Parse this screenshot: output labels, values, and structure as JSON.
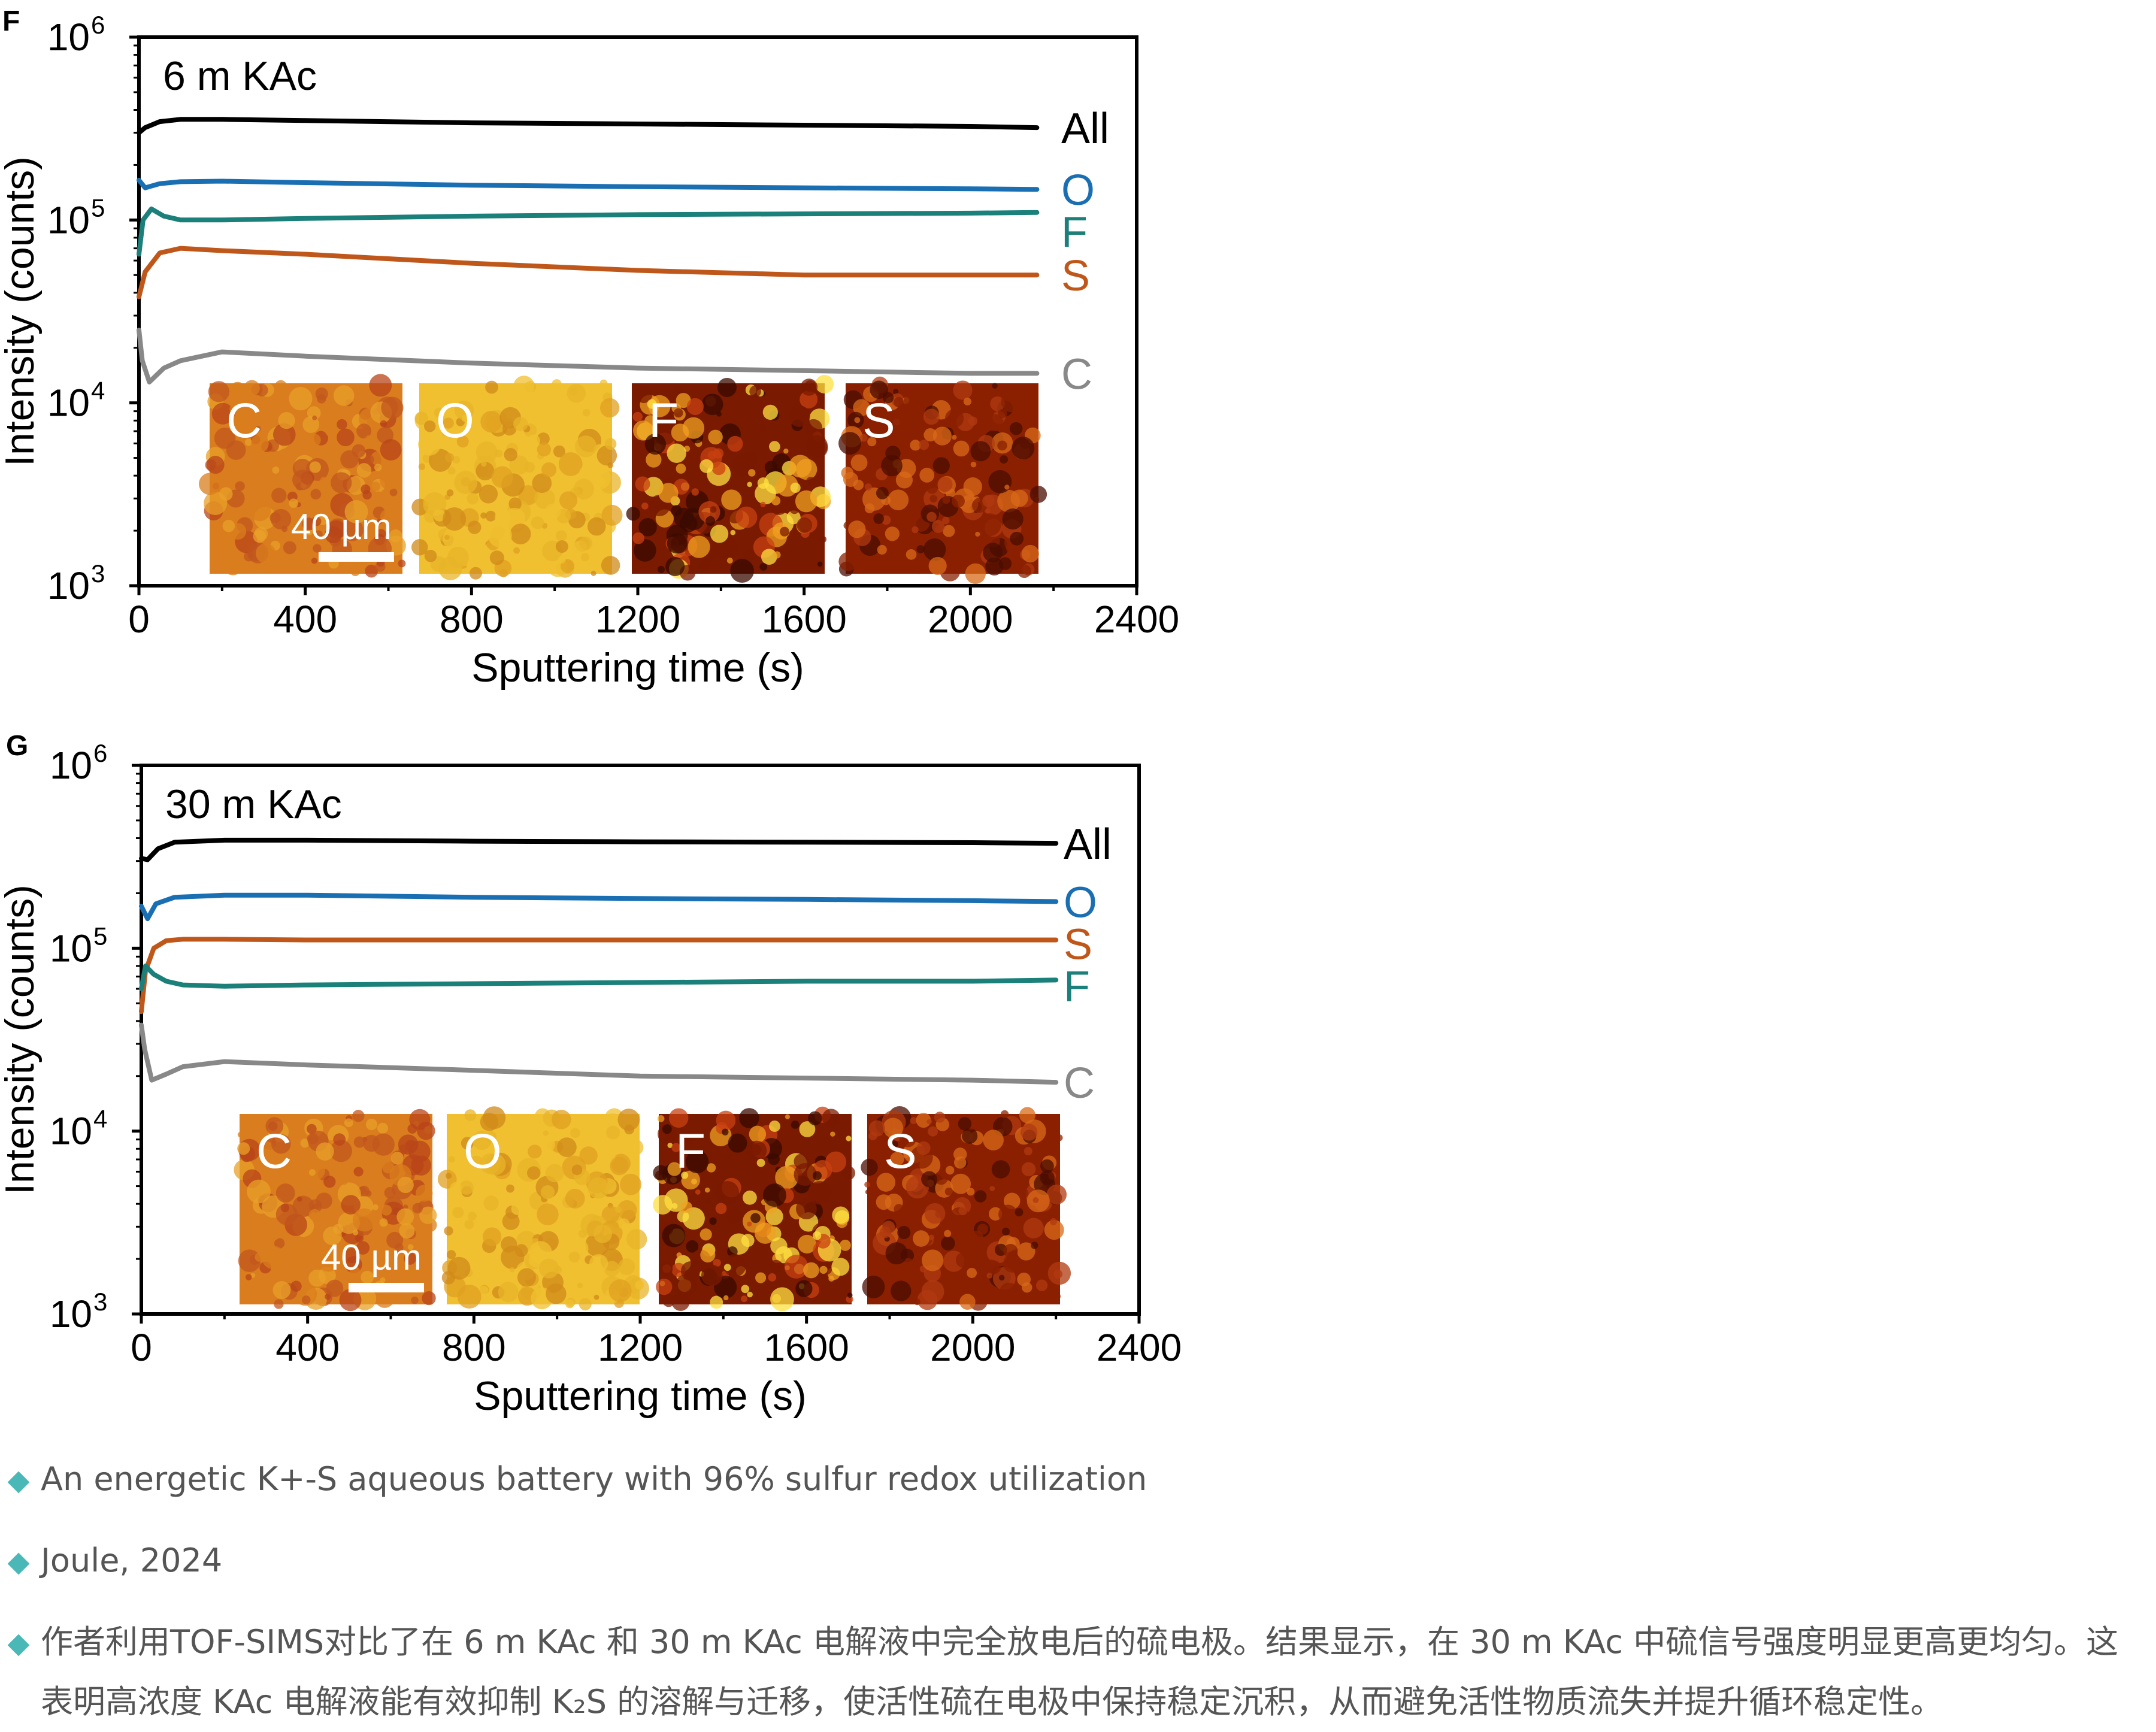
{
  "panels": [
    {
      "letter": "F",
      "title": "6 m KAc",
      "ylabel": "Intensity (counts)",
      "xlabel": "Sputtering time (s)",
      "scalebar_label": "40 µm",
      "inset_labels": [
        "C",
        "O",
        "F",
        "S"
      ]
    },
    {
      "letter": "G",
      "title": "30 m KAc",
      "ylabel": "Intensity (counts)",
      "xlabel": "Sputtering time (s)",
      "scalebar_label": "40 µm",
      "inset_labels": [
        "C",
        "O",
        "F",
        "S"
      ]
    }
  ],
  "chart_data": [
    {
      "type": "line",
      "title": "6 m KAc",
      "xlabel": "Sputtering time (s)",
      "ylabel": "Intensity (counts)",
      "yscale": "log",
      "xlim": [
        0,
        2400
      ],
      "ylim": [
        1000,
        1000000
      ],
      "xticks": [
        "0",
        "400",
        "800",
        "1200",
        "1600",
        "2000",
        "2400"
      ],
      "yticks": [
        "10^3",
        "10^4",
        "10^5",
        "10^6"
      ],
      "series": [
        {
          "name": "All",
          "color": "#000000",
          "x": [
            0,
            15,
            50,
            100,
            200,
            400,
            800,
            1200,
            1600,
            2000,
            2160
          ],
          "y": [
            300000,
            320000,
            345000,
            355000,
            355000,
            350000,
            340000,
            335000,
            330000,
            325000,
            320000
          ]
        },
        {
          "name": "O",
          "color": "#1a6fb3",
          "x": [
            0,
            15,
            50,
            100,
            200,
            400,
            800,
            1200,
            1600,
            2000,
            2160
          ],
          "y": [
            165000,
            150000,
            158000,
            162000,
            163000,
            160000,
            155000,
            152000,
            150000,
            148000,
            147000
          ]
        },
        {
          "name": "F",
          "color": "#1b7f7a",
          "x": [
            0,
            10,
            30,
            60,
            100,
            200,
            400,
            800,
            1200,
            1600,
            2000,
            2160
          ],
          "y": [
            65000,
            100000,
            115000,
            105000,
            100000,
            100000,
            102000,
            105000,
            107000,
            108000,
            109000,
            110000
          ]
        },
        {
          "name": "S",
          "color": "#c0571a",
          "x": [
            0,
            15,
            50,
            100,
            200,
            400,
            800,
            1200,
            1600,
            2000,
            2160
          ],
          "y": [
            38000,
            52000,
            66000,
            70000,
            68000,
            65000,
            58000,
            53000,
            50000,
            50000,
            50000
          ]
        },
        {
          "name": "C",
          "color": "#888888",
          "x": [
            0,
            8,
            25,
            60,
            100,
            200,
            400,
            800,
            1200,
            1600,
            2000,
            2160
          ],
          "y": [
            25000,
            17000,
            13000,
            15500,
            17000,
            19000,
            18000,
            16500,
            15500,
            15000,
            14500,
            14500
          ]
        }
      ]
    },
    {
      "type": "line",
      "title": "30 m KAc",
      "xlabel": "Sputtering time (s)",
      "ylabel": "Intensity (counts)",
      "yscale": "log",
      "xlim": [
        0,
        2400
      ],
      "ylim": [
        1000,
        1000000
      ],
      "xticks": [
        "0",
        "400",
        "800",
        "1200",
        "1600",
        "2000",
        "2400"
      ],
      "yticks": [
        "10^3",
        "10^4",
        "10^5",
        "10^6"
      ],
      "series": [
        {
          "name": "All",
          "color": "#000000",
          "x": [
            0,
            15,
            40,
            80,
            200,
            400,
            800,
            1200,
            1600,
            2000,
            2200
          ],
          "y": [
            310000,
            305000,
            350000,
            380000,
            390000,
            390000,
            385000,
            382000,
            380000,
            378000,
            375000
          ]
        },
        {
          "name": "O",
          "color": "#1a6fb3",
          "x": [
            0,
            15,
            35,
            80,
            200,
            400,
            800,
            1200,
            1600,
            2000,
            2200
          ],
          "y": [
            170000,
            145000,
            175000,
            190000,
            195000,
            195000,
            190000,
            187000,
            185000,
            182000,
            180000
          ]
        },
        {
          "name": "S",
          "color": "#c0571a",
          "x": [
            0,
            10,
            30,
            60,
            100,
            200,
            400,
            800,
            1200,
            1600,
            2000,
            2200
          ],
          "y": [
            45000,
            75000,
            100000,
            110000,
            112000,
            112000,
            111000,
            111000,
            111000,
            111000,
            111000,
            111000
          ]
        },
        {
          "name": "F",
          "color": "#1b7f7a",
          "x": [
            0,
            10,
            30,
            60,
            100,
            200,
            400,
            800,
            1200,
            1600,
            2000,
            2200
          ],
          "y": [
            60000,
            80000,
            72000,
            66000,
            63000,
            62000,
            63000,
            64000,
            65000,
            66000,
            66000,
            67000
          ]
        },
        {
          "name": "C",
          "color": "#888888",
          "x": [
            0,
            8,
            25,
            60,
            100,
            200,
            400,
            800,
            1200,
            1600,
            2000,
            2200
          ],
          "y": [
            38000,
            28000,
            19000,
            20500,
            22500,
            24000,
            23000,
            21500,
            20000,
            19500,
            19000,
            18500
          ]
        }
      ]
    }
  ],
  "captions": [
    "An energetic K+-S aqueous battery with 96% sulfur redox utilization",
    "Joule, 2024",
    "作者利用TOF-SIMS对比了在 6 m KAc 和 30 m KAc 电解液中完全放电后的硫电极。结果显示，在 30 m KAc 中硫信号强度明显更高更均匀。这表明高浓度 KAc 电解液能有效抑制 K₂S 的溶解与迁移，使活性硫在电极中保持稳定沉积，从而避免活性物质流失并提升循环稳定性。"
  ],
  "colors": {
    "bullet": "#4bb8b8",
    "caption_text": "#555555"
  }
}
